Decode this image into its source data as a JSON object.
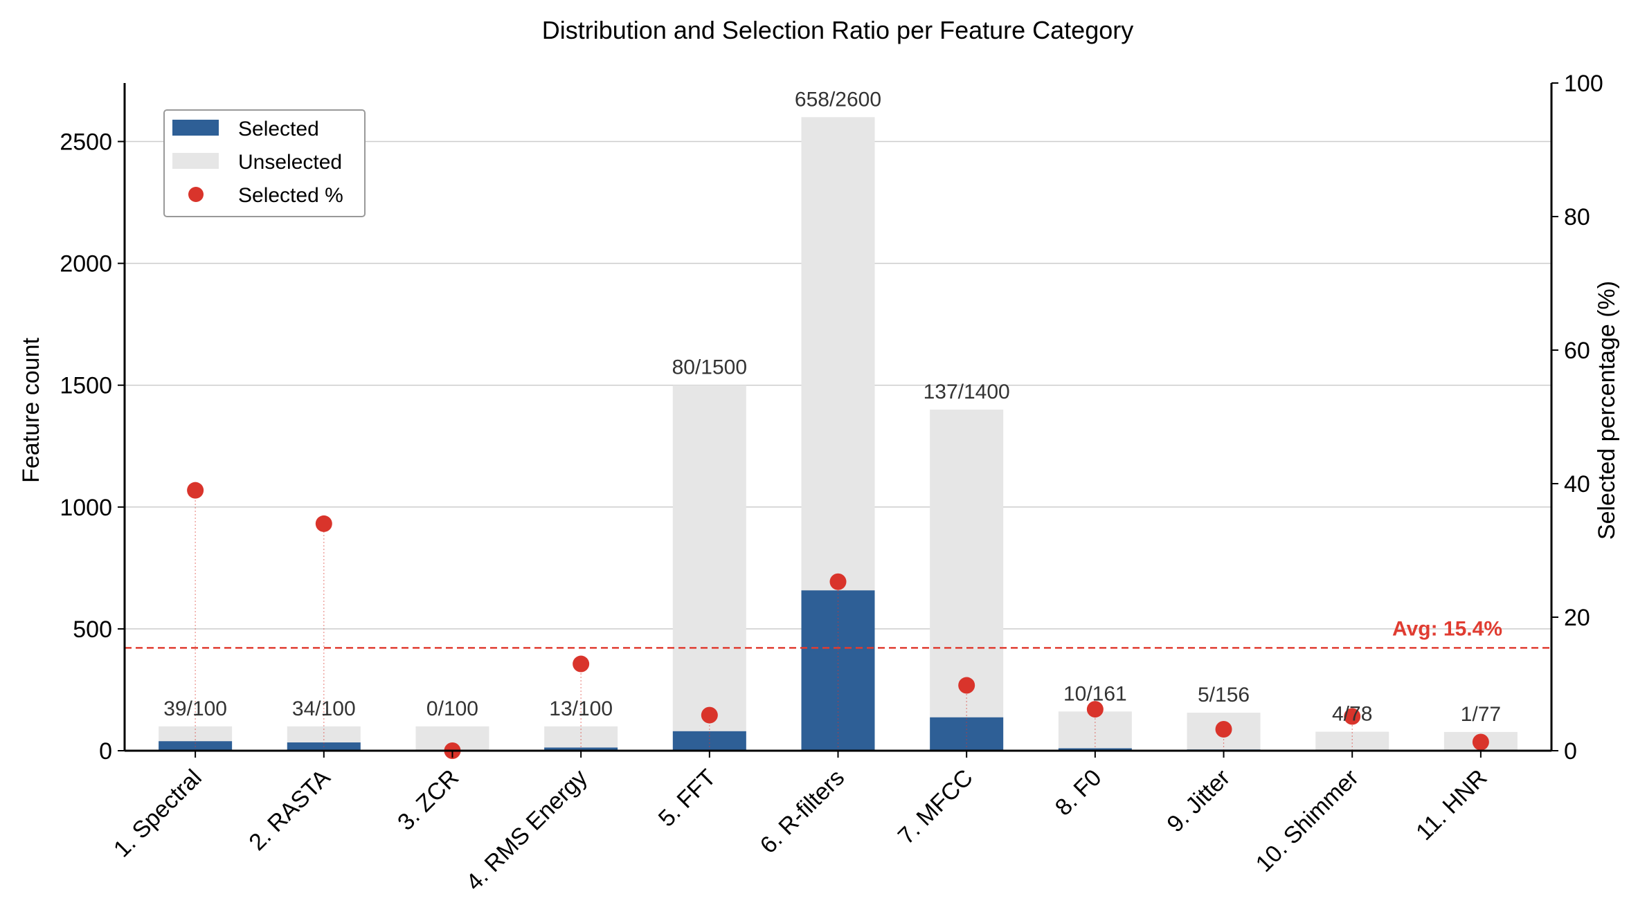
{
  "chart_data": {
    "type": "bar",
    "title": "Distribution and Selection Ratio per Feature Category",
    "xlabel": "",
    "ylabel": "Feature count",
    "ylabel_right": "Selected percentage (%)",
    "ylim": [
      0,
      2740
    ],
    "ylim_right": [
      0,
      100
    ],
    "yticks": [
      0,
      500,
      1000,
      1500,
      2000,
      2500
    ],
    "yticks_right": [
      0,
      20,
      40,
      60,
      80,
      100
    ],
    "grid": true,
    "legend_position": "upper-left",
    "categories": [
      "1. Spectral",
      "2. RASTA",
      "3. ZCR",
      "4. RMS Energy",
      "5. FFT",
      "6. R-filters",
      "7. MFCC",
      "8. F0",
      "9. Jitter",
      "10. Shimmer",
      "11. HNR"
    ],
    "series": [
      {
        "name": "Selected",
        "type": "bar",
        "stacked": true,
        "values": [
          39,
          34,
          0,
          13,
          80,
          658,
          137,
          10,
          5,
          4,
          1
        ]
      },
      {
        "name": "Unselected",
        "type": "bar",
        "stacked": true,
        "values": [
          61,
          66,
          100,
          87,
          1420,
          1942,
          1263,
          151,
          151,
          74,
          76
        ]
      },
      {
        "name": "Selected %",
        "type": "scatter",
        "axis": "right",
        "values": [
          39.0,
          34.0,
          0.0,
          13.0,
          5.33,
          25.31,
          9.79,
          6.21,
          3.21,
          5.13,
          1.3
        ]
      }
    ],
    "bar_labels": [
      "39/100",
      "34/100",
      "0/100",
      "13/100",
      "80/1500",
      "658/2600",
      "137/1400",
      "10/161",
      "5/156",
      "4/78",
      "1/77"
    ],
    "average_line": {
      "value": 15.4,
      "label": "Avg: 15.4%"
    },
    "colors": {
      "selected": "#2e5f96",
      "unselected": "#e6e6e6",
      "percent": "#d9342b",
      "avg": "#e03c31",
      "grid": "#cccccc",
      "label_text": "#333333"
    }
  }
}
